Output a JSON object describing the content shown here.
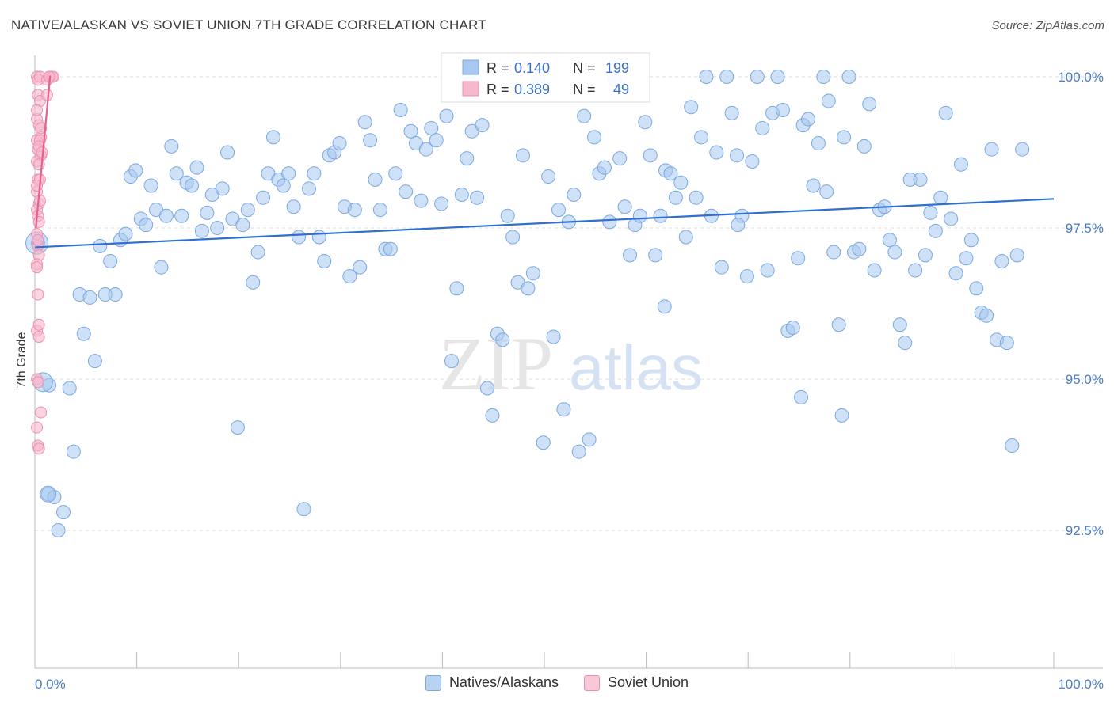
{
  "title": "NATIVE/ALASKAN VS SOVIET UNION 7TH GRADE CORRELATION CHART",
  "source": "Source: ZipAtlas.com",
  "watermark": {
    "zip": "ZIP",
    "atlas": "atlas"
  },
  "legend_box": {
    "rows": [
      {
        "r_label": "R =",
        "r_value": "0.140",
        "n_label": "N =",
        "n_value": "199"
      },
      {
        "r_label": "R =",
        "r_value": "0.389",
        "n_label": "N =",
        "n_value": "49"
      }
    ]
  },
  "colors": {
    "blue_fill": "#a8c8f0",
    "blue_stroke": "#7aa8e0",
    "blue_line": "#2f6fd0",
    "pink_fill": "#f6b8cc",
    "pink_stroke": "#ee8fb0",
    "pink_line": "#e8608c",
    "tick_text": "#4a7cc7",
    "grid": "#dddddd"
  },
  "chart_data": {
    "type": "scatter",
    "ylabel": "7th Grade",
    "xlim": [
      0,
      100
    ],
    "ylim": [
      90.0,
      100.6
    ],
    "x_tick_labels": [
      "0.0%",
      "100.0%"
    ],
    "y_ticks": [
      100.0,
      97.5,
      95.0,
      92.5
    ],
    "y_tick_labels": [
      "100.0%",
      "97.5%",
      "95.0%",
      "92.5%"
    ],
    "grid": true,
    "legend_placement": "bottom-center",
    "series": [
      {
        "name": "Natives/Alaskans",
        "color": "#a8c8f0",
        "trend": {
          "x0": 0,
          "y0": 97.18,
          "x1": 100,
          "y1": 97.98
        },
        "points": [
          [
            0.3,
            97.25
          ],
          [
            1.4,
            94.9
          ],
          [
            1.3,
            93.1
          ],
          [
            1.9,
            93.05
          ],
          [
            2.3,
            92.5
          ],
          [
            2.8,
            92.8
          ],
          [
            3.4,
            94.85
          ],
          [
            3.8,
            93.8
          ],
          [
            4.4,
            96.4
          ],
          [
            4.8,
            95.75
          ],
          [
            5.4,
            96.35
          ],
          [
            5.9,
            95.3
          ],
          [
            6.4,
            97.2
          ],
          [
            6.9,
            96.4
          ],
          [
            7.4,
            96.95
          ],
          [
            7.9,
            96.4
          ],
          [
            8.4,
            97.3
          ],
          [
            8.9,
            97.4
          ],
          [
            9.4,
            98.35
          ],
          [
            9.9,
            98.45
          ],
          [
            10.4,
            97.65
          ],
          [
            10.9,
            97.55
          ],
          [
            11.4,
            98.2
          ],
          [
            11.9,
            97.8
          ],
          [
            12.4,
            96.85
          ],
          [
            12.9,
            97.7
          ],
          [
            13.4,
            98.85
          ],
          [
            13.9,
            98.4
          ],
          [
            14.4,
            97.7
          ],
          [
            14.9,
            98.25
          ],
          [
            15.4,
            98.2
          ],
          [
            15.9,
            98.5
          ],
          [
            16.4,
            97.45
          ],
          [
            16.9,
            97.75
          ],
          [
            17.4,
            98.05
          ],
          [
            17.9,
            97.5
          ],
          [
            18.4,
            98.15
          ],
          [
            18.9,
            98.75
          ],
          [
            19.4,
            97.65
          ],
          [
            19.9,
            94.2
          ],
          [
            20.4,
            97.55
          ],
          [
            20.9,
            97.8
          ],
          [
            21.4,
            96.6
          ],
          [
            21.9,
            97.1
          ],
          [
            22.4,
            98.0
          ],
          [
            22.9,
            98.4
          ],
          [
            23.4,
            99.0
          ],
          [
            23.9,
            98.3
          ],
          [
            24.4,
            98.2
          ],
          [
            24.9,
            98.4
          ],
          [
            25.4,
            97.85
          ],
          [
            25.9,
            97.35
          ],
          [
            26.4,
            92.85
          ],
          [
            26.9,
            98.15
          ],
          [
            27.4,
            98.4
          ],
          [
            27.9,
            97.35
          ],
          [
            28.4,
            96.95
          ],
          [
            28.9,
            98.7
          ],
          [
            29.4,
            98.75
          ],
          [
            29.9,
            98.9
          ],
          [
            30.4,
            97.85
          ],
          [
            30.9,
            96.7
          ],
          [
            31.4,
            97.8
          ],
          [
            31.9,
            96.85
          ],
          [
            32.4,
            99.25
          ],
          [
            32.9,
            98.95
          ],
          [
            33.4,
            98.3
          ],
          [
            33.9,
            97.8
          ],
          [
            34.4,
            97.15
          ],
          [
            34.9,
            97.15
          ],
          [
            35.4,
            98.4
          ],
          [
            35.9,
            99.45
          ],
          [
            36.4,
            98.1
          ],
          [
            36.9,
            99.1
          ],
          [
            37.4,
            98.9
          ],
          [
            37.9,
            97.95
          ],
          [
            38.4,
            98.8
          ],
          [
            38.9,
            99.15
          ],
          [
            39.4,
            98.95
          ],
          [
            39.9,
            97.9
          ],
          [
            40.4,
            99.35
          ],
          [
            40.9,
            95.3
          ],
          [
            41.4,
            96.5
          ],
          [
            41.9,
            98.05
          ],
          [
            42.4,
            98.65
          ],
          [
            42.9,
            99.1
          ],
          [
            43.4,
            98.0
          ],
          [
            43.9,
            99.2
          ],
          [
            44.4,
            94.85
          ],
          [
            44.9,
            94.4
          ],
          [
            45.4,
            95.75
          ],
          [
            45.9,
            95.65
          ],
          [
            46.4,
            97.7
          ],
          [
            46.9,
            97.35
          ],
          [
            47.4,
            96.6
          ],
          [
            47.9,
            98.7
          ],
          [
            48.4,
            96.5
          ],
          [
            48.9,
            96.75
          ],
          [
            49.4,
            99.95
          ],
          [
            49.9,
            93.95
          ],
          [
            50.4,
            98.35
          ],
          [
            50.9,
            95.7
          ],
          [
            51.4,
            97.8
          ],
          [
            51.9,
            94.5
          ],
          [
            52.4,
            97.6
          ],
          [
            52.9,
            98.05
          ],
          [
            53.4,
            93.8
          ],
          [
            53.9,
            99.35
          ],
          [
            54.4,
            94.0
          ],
          [
            54.9,
            99.0
          ],
          [
            55.4,
            98.4
          ],
          [
            55.9,
            98.5
          ],
          [
            56.4,
            97.6
          ],
          [
            56.9,
            99.95
          ],
          [
            57.4,
            98.65
          ],
          [
            57.9,
            97.85
          ],
          [
            58.4,
            97.05
          ],
          [
            58.9,
            97.55
          ],
          [
            59.4,
            97.7
          ],
          [
            59.9,
            99.25
          ],
          [
            60.4,
            98.7
          ],
          [
            60.9,
            97.05
          ],
          [
            61.4,
            97.7
          ],
          [
            61.9,
            98.45
          ],
          [
            62.4,
            98.4
          ],
          [
            62.9,
            98.0
          ],
          [
            63.4,
            98.25
          ],
          [
            63.9,
            97.35
          ],
          [
            64.4,
            99.5
          ],
          [
            64.9,
            98.0
          ],
          [
            65.4,
            99.0
          ],
          [
            65.9,
            100.0
          ],
          [
            66.4,
            97.7
          ],
          [
            66.9,
            98.75
          ],
          [
            67.4,
            96.85
          ],
          [
            67.9,
            100.0
          ],
          [
            68.4,
            99.4
          ],
          [
            68.9,
            98.7
          ],
          [
            69.4,
            97.7
          ],
          [
            69.9,
            96.7
          ],
          [
            70.4,
            98.6
          ],
          [
            70.9,
            100.0
          ],
          [
            71.4,
            99.15
          ],
          [
            71.9,
            96.8
          ],
          [
            72.4,
            99.4
          ],
          [
            72.9,
            100.0
          ],
          [
            73.4,
            99.45
          ],
          [
            73.9,
            95.8
          ],
          [
            74.4,
            95.85
          ],
          [
            74.9,
            97.0
          ],
          [
            75.4,
            99.2
          ],
          [
            75.9,
            99.3
          ],
          [
            76.4,
            98.2
          ],
          [
            76.9,
            98.9
          ],
          [
            77.4,
            100.0
          ],
          [
            77.9,
            99.6
          ],
          [
            78.4,
            97.1
          ],
          [
            78.9,
            95.9
          ],
          [
            79.4,
            99.0
          ],
          [
            79.9,
            100.0
          ],
          [
            80.4,
            97.1
          ],
          [
            80.9,
            97.15
          ],
          [
            81.4,
            98.85
          ],
          [
            81.9,
            99.55
          ],
          [
            82.4,
            96.8
          ],
          [
            82.9,
            97.8
          ],
          [
            83.4,
            97.85
          ],
          [
            83.9,
            97.3
          ],
          [
            84.4,
            97.1
          ],
          [
            84.9,
            95.9
          ],
          [
            85.4,
            95.6
          ],
          [
            85.9,
            98.3
          ],
          [
            86.4,
            96.8
          ],
          [
            86.9,
            98.3
          ],
          [
            87.4,
            97.05
          ],
          [
            87.9,
            97.75
          ],
          [
            88.4,
            97.45
          ],
          [
            88.9,
            98.0
          ],
          [
            89.4,
            99.4
          ],
          [
            89.9,
            97.65
          ],
          [
            90.4,
            96.75
          ],
          [
            90.9,
            98.55
          ],
          [
            91.4,
            97.0
          ],
          [
            91.9,
            97.3
          ],
          [
            92.4,
            96.5
          ],
          [
            92.9,
            96.1
          ],
          [
            93.4,
            96.05
          ],
          [
            93.9,
            98.8
          ],
          [
            94.4,
            95.65
          ],
          [
            94.9,
            96.95
          ],
          [
            95.4,
            95.6
          ],
          [
            95.9,
            93.9
          ],
          [
            96.4,
            97.05
          ],
          [
            96.9,
            98.8
          ],
          [
            75.2,
            94.7
          ],
          [
            79.2,
            94.4
          ],
          [
            61.8,
            96.2
          ],
          [
            77.7,
            98.1
          ],
          [
            69.0,
            97.55
          ]
        ]
      },
      {
        "name": "Soviet Union",
        "color": "#f6b8cc",
        "trend": {
          "x0": 0.1,
          "y0": 97.5,
          "x1": 1.5,
          "y1": 100.02
        },
        "points": [
          [
            0.2,
            100.0
          ],
          [
            0.3,
            99.95
          ],
          [
            0.5,
            100.0
          ],
          [
            1.2,
            99.95
          ],
          [
            1.5,
            100.0
          ],
          [
            1.7,
            100.0
          ],
          [
            1.8,
            100.0
          ],
          [
            1.4,
            100.0
          ],
          [
            0.3,
            99.7
          ],
          [
            0.5,
            99.6
          ],
          [
            1.2,
            99.7
          ],
          [
            0.2,
            99.3
          ],
          [
            0.4,
            99.2
          ],
          [
            0.6,
            99.0
          ],
          [
            0.2,
            98.95
          ],
          [
            0.5,
            98.95
          ],
          [
            0.3,
            98.8
          ],
          [
            0.6,
            98.7
          ],
          [
            0.2,
            98.6
          ],
          [
            0.4,
            98.55
          ],
          [
            0.3,
            98.3
          ],
          [
            0.5,
            98.3
          ],
          [
            0.2,
            98.1
          ],
          [
            0.4,
            97.9
          ],
          [
            0.2,
            97.8
          ],
          [
            0.3,
            97.7
          ],
          [
            0.4,
            97.6
          ],
          [
            0.2,
            97.4
          ],
          [
            0.3,
            97.2
          ],
          [
            0.4,
            97.05
          ],
          [
            0.2,
            96.9
          ],
          [
            0.3,
            96.4
          ],
          [
            0.2,
            95.8
          ],
          [
            0.4,
            95.7
          ],
          [
            0.2,
            95.0
          ],
          [
            0.3,
            94.95
          ],
          [
            0.6,
            94.45
          ],
          [
            0.2,
            94.2
          ],
          [
            0.3,
            93.9
          ],
          [
            0.4,
            93.85
          ],
          [
            0.2,
            99.45
          ],
          [
            0.6,
            99.15
          ],
          [
            0.4,
            98.85
          ],
          [
            0.7,
            98.75
          ],
          [
            0.2,
            98.2
          ],
          [
            0.5,
            97.95
          ],
          [
            0.3,
            97.3
          ],
          [
            0.2,
            96.85
          ],
          [
            0.4,
            95.9
          ]
        ]
      }
    ]
  },
  "bottom_legend": [
    {
      "label": "Natives/Alaskans",
      "color": "#a8c8f0"
    },
    {
      "label": "Soviet Union",
      "color": "#f6b8cc"
    }
  ]
}
